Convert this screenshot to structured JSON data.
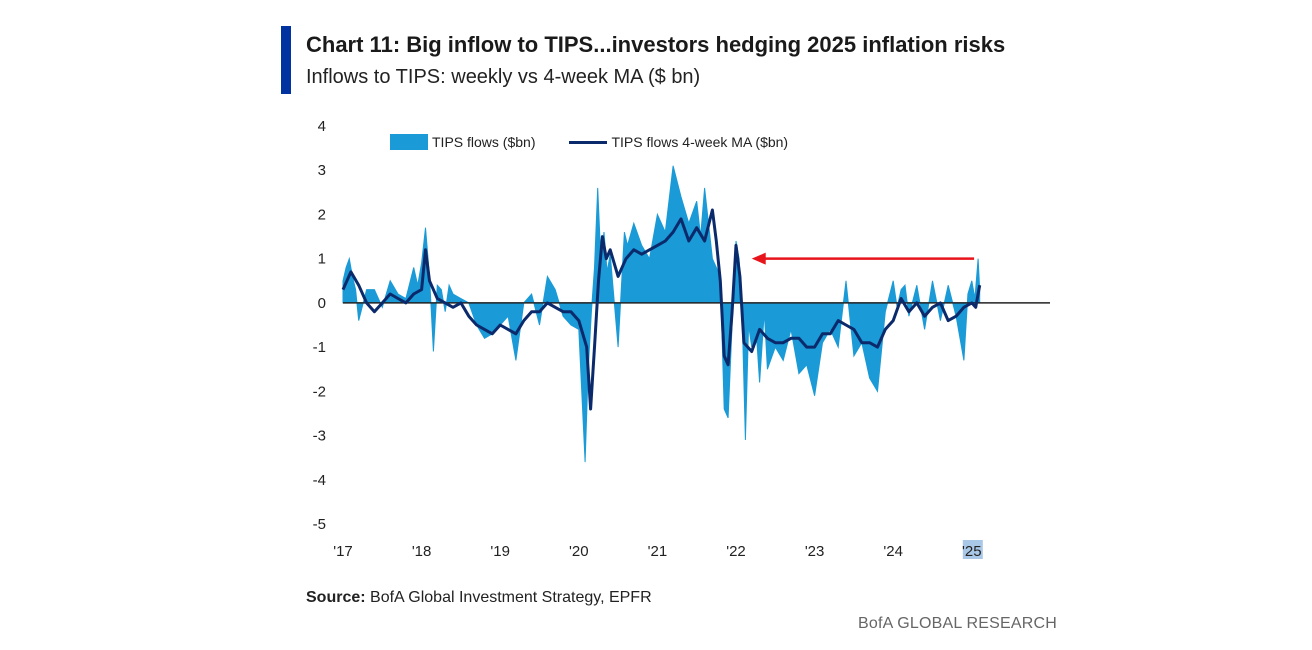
{
  "header": {
    "title": "Chart 11: Big inflow to TIPS...investors hedging 2025 inflation risks",
    "subtitle": "Inflows to TIPS: weekly vs 4-week MA ($ bn)"
  },
  "footer": {
    "source_label": "Source:",
    "source_text": " BofA Global Investment Strategy, EPFR",
    "brand": "BofA GLOBAL RESEARCH"
  },
  "colors": {
    "accent": "#0033a0",
    "area": "#1a9ad6",
    "ma_line": "#0b2a6b",
    "arrow": "#e8141b"
  },
  "chart_data": {
    "type": "area",
    "title": "Inflows to TIPS: weekly vs 4-week MA ($ bn)",
    "ylim": [
      -5,
      4
    ],
    "yticks": [
      "4",
      "3",
      "2",
      "1",
      "0",
      "-1",
      "-2",
      "-3",
      "-4",
      "-5"
    ],
    "x_tick_labels": [
      "'17",
      "'18",
      "'19",
      "'20",
      "'21",
      "'22",
      "'23",
      "'24",
      "'25"
    ],
    "x_tick_years": [
      2017,
      2018,
      2019,
      2020,
      2021,
      2022,
      2023,
      2024,
      2025
    ],
    "grid": false,
    "legend_position": "top",
    "annotation": "arrow pointing left from latest weekly inflow to 2022 peak",
    "series": [
      {
        "name": "TIPS flows ($bn)",
        "kind": "area",
        "x": [
          2017.0,
          2017.04,
          2017.08,
          2017.12,
          2017.16,
          2017.2,
          2017.3,
          2017.4,
          2017.5,
          2017.6,
          2017.7,
          2017.8,
          2017.9,
          2017.95,
          2018.0,
          2018.05,
          2018.1,
          2018.15,
          2018.2,
          2018.25,
          2018.3,
          2018.35,
          2018.4,
          2018.5,
          2018.6,
          2018.7,
          2018.8,
          2018.9,
          2019.0,
          2019.1,
          2019.2,
          2019.3,
          2019.4,
          2019.5,
          2019.6,
          2019.7,
          2019.8,
          2019.9,
          2020.0,
          2020.08,
          2020.12,
          2020.16,
          2020.2,
          2020.24,
          2020.28,
          2020.32,
          2020.36,
          2020.4,
          2020.5,
          2020.58,
          2020.62,
          2020.7,
          2020.8,
          2020.9,
          2021.0,
          2021.1,
          2021.2,
          2021.3,
          2021.4,
          2021.5,
          2021.55,
          2021.6,
          2021.7,
          2021.8,
          2021.85,
          2021.9,
          2021.95,
          2022.0,
          2022.04,
          2022.08,
          2022.12,
          2022.16,
          2022.2,
          2022.26,
          2022.3,
          2022.36,
          2022.4,
          2022.5,
          2022.6,
          2022.7,
          2022.8,
          2022.9,
          2023.0,
          2023.1,
          2023.2,
          2023.3,
          2023.4,
          2023.5,
          2023.6,
          2023.7,
          2023.8,
          2023.9,
          2024.0,
          2024.05,
          2024.1,
          2024.15,
          2024.2,
          2024.3,
          2024.4,
          2024.5,
          2024.6,
          2024.7,
          2024.8,
          2024.9,
          2024.95,
          2025.0,
          2025.04,
          2025.08,
          2025.1
        ],
        "values": [
          0.5,
          0.8,
          1.0,
          0.6,
          0.3,
          -0.4,
          0.3,
          0.3,
          -0.1,
          0.5,
          0.2,
          0.1,
          0.8,
          0.4,
          0.9,
          1.7,
          0.6,
          -1.1,
          0.4,
          0.3,
          -0.2,
          0.4,
          0.2,
          0.1,
          0.0,
          -0.5,
          -0.8,
          -0.7,
          -0.5,
          -0.3,
          -1.3,
          0.0,
          0.2,
          -0.5,
          0.6,
          0.3,
          -0.3,
          -0.5,
          -0.6,
          -3.6,
          -1.5,
          -0.2,
          0.8,
          2.6,
          1.0,
          1.6,
          0.7,
          1.1,
          -1.0,
          1.6,
          1.3,
          1.8,
          1.3,
          1.0,
          2.0,
          1.6,
          3.1,
          2.4,
          1.8,
          2.3,
          1.5,
          2.6,
          1.0,
          0.6,
          -2.4,
          -2.6,
          -0.5,
          1.4,
          1.0,
          -0.4,
          -3.1,
          -0.5,
          -1.0,
          -0.7,
          -1.8,
          -0.2,
          -1.5,
          -1.0,
          -1.3,
          -0.6,
          -1.6,
          -1.4,
          -2.1,
          -0.9,
          -0.6,
          -1.0,
          0.5,
          -1.2,
          -0.9,
          -1.7,
          -2.0,
          -0.2,
          0.5,
          -0.1,
          0.3,
          0.4,
          -0.3,
          0.4,
          -0.6,
          0.5,
          -0.4,
          0.4,
          -0.3,
          -1.3,
          0.2,
          0.5,
          0.1,
          1.0,
          0.3
        ]
      },
      {
        "name": "TIPS flows 4-week MA ($bn)",
        "kind": "line",
        "x": [
          2017.0,
          2017.1,
          2017.2,
          2017.3,
          2017.4,
          2017.5,
          2017.6,
          2017.7,
          2017.8,
          2017.9,
          2018.0,
          2018.05,
          2018.1,
          2018.2,
          2018.3,
          2018.4,
          2018.5,
          2018.6,
          2018.7,
          2018.8,
          2018.9,
          2019.0,
          2019.1,
          2019.2,
          2019.3,
          2019.4,
          2019.5,
          2019.6,
          2019.7,
          2019.8,
          2019.9,
          2020.0,
          2020.1,
          2020.15,
          2020.2,
          2020.25,
          2020.3,
          2020.35,
          2020.4,
          2020.5,
          2020.6,
          2020.7,
          2020.8,
          2020.9,
          2021.0,
          2021.1,
          2021.2,
          2021.3,
          2021.4,
          2021.5,
          2021.6,
          2021.7,
          2021.75,
          2021.8,
          2021.85,
          2021.9,
          2021.95,
          2022.0,
          2022.05,
          2022.1,
          2022.15,
          2022.2,
          2022.3,
          2022.4,
          2022.5,
          2022.6,
          2022.7,
          2022.8,
          2022.9,
          2023.0,
          2023.1,
          2023.2,
          2023.3,
          2023.4,
          2023.5,
          2023.6,
          2023.7,
          2023.8,
          2023.9,
          2024.0,
          2024.1,
          2024.2,
          2024.3,
          2024.4,
          2024.5,
          2024.6,
          2024.7,
          2024.8,
          2024.9,
          2025.0,
          2025.05,
          2025.1
        ],
        "values": [
          0.3,
          0.7,
          0.4,
          0.0,
          -0.2,
          0.0,
          0.2,
          0.1,
          0.0,
          0.2,
          0.3,
          1.2,
          0.5,
          0.1,
          0.0,
          -0.1,
          0.0,
          -0.3,
          -0.5,
          -0.6,
          -0.7,
          -0.5,
          -0.6,
          -0.7,
          -0.4,
          -0.2,
          -0.2,
          0.0,
          -0.1,
          -0.2,
          -0.2,
          -0.4,
          -1.0,
          -2.4,
          -1.0,
          0.5,
          1.5,
          1.0,
          1.2,
          0.6,
          1.0,
          1.2,
          1.1,
          1.2,
          1.3,
          1.4,
          1.6,
          1.9,
          1.4,
          1.7,
          1.4,
          2.1,
          1.4,
          0.5,
          -1.2,
          -1.4,
          -0.2,
          1.3,
          0.6,
          -0.9,
          -1.0,
          -1.1,
          -0.6,
          -0.8,
          -0.9,
          -0.9,
          -0.8,
          -0.8,
          -1.0,
          -1.0,
          -0.7,
          -0.7,
          -0.4,
          -0.5,
          -0.6,
          -0.9,
          -0.9,
          -1.0,
          -0.6,
          -0.4,
          0.1,
          -0.2,
          0.0,
          -0.3,
          -0.1,
          0.0,
          -0.4,
          -0.3,
          -0.1,
          0.0,
          -0.1,
          0.4
        ]
      }
    ]
  }
}
